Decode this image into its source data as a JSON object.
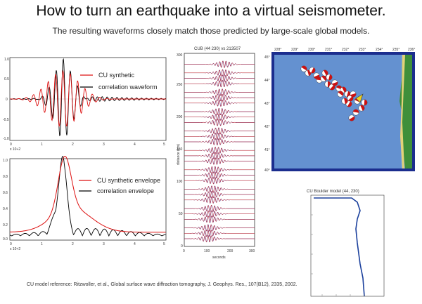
{
  "title": "How to turn an earthquake into a virtual seismometer.",
  "subtitle": "The resulting waveforms closely match those predicted by large-scale global models.",
  "panel_top": {
    "yticks": [
      "1.0",
      "0.5",
      "0",
      "-0.5",
      "-1.0"
    ],
    "xticks": [
      "0",
      "1",
      "2",
      "3",
      "4",
      "5"
    ],
    "x_exponent": "x 10+2",
    "legend": [
      "CU synthetic",
      "correlation waveform"
    ],
    "colors": {
      "synthetic": "#dd1111",
      "correlation": "#000000"
    }
  },
  "panel_bottom": {
    "yticks": [
      "1.0",
      "0.8",
      "0.6",
      "0.4",
      "0.2",
      "0.0"
    ],
    "xticks": [
      "0",
      "1",
      "2",
      "3",
      "4",
      "5"
    ],
    "x_exponent": "x 10+2",
    "legend": [
      "CU synthetic envelope",
      "correlation envelope"
    ]
  },
  "record_section": {
    "title": "CUB (44 230) vs 213507",
    "ylabel": "distance (km)",
    "xlabel": "seconds",
    "yticks": [
      "0",
      "50",
      "100",
      "150",
      "200",
      "250",
      "300"
    ],
    "xticks": [
      "0",
      "100",
      "200",
      "300"
    ]
  },
  "map": {
    "lon_ticks": [
      "228°",
      "229°",
      "230°",
      "231°",
      "232°",
      "233°",
      "234°",
      "235°",
      "236°"
    ],
    "lat_ticks": [
      "45°",
      "44°",
      "43°",
      "42°",
      "41°",
      "40°"
    ]
  },
  "model": {
    "title": "CU Boulder model (44, 230)"
  },
  "reference": "CU model reference: Ritzwoller, et al., Global surface wave diffraction tomography, J. Geophys. Res., 107(B12), 2335, 2002."
}
